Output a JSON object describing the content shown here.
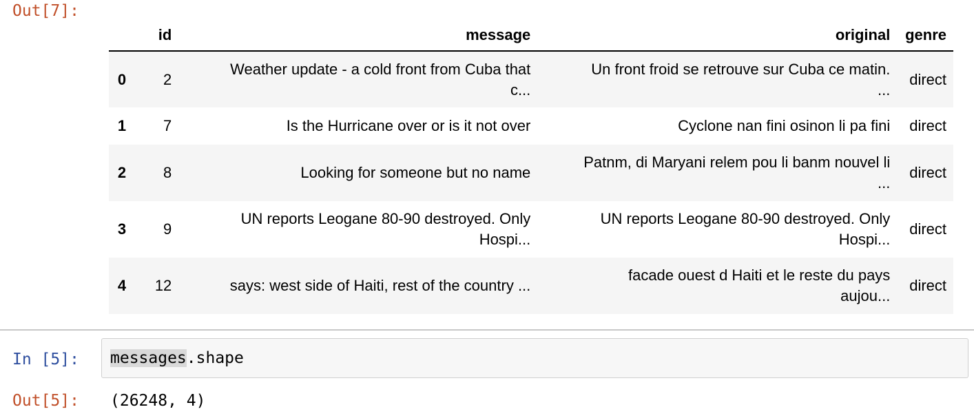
{
  "out_prompt_top": "Out[7]:",
  "in_prompt": "In [5]:",
  "out_prompt_bottom": "Out[5]:",
  "dataframe": {
    "columns": [
      "",
      "id",
      "message",
      "original",
      "genre"
    ],
    "rows": [
      {
        "index": "0",
        "id": "2",
        "message": [
          "Weather update - a cold front from Cuba that",
          "c..."
        ],
        "original": [
          "Un front froid se retrouve sur Cuba ce matin.",
          "..."
        ],
        "genre": "direct"
      },
      {
        "index": "1",
        "id": "7",
        "message": [
          "Is the Hurricane over or is it not over"
        ],
        "original": [
          "Cyclone nan fini osinon li pa fini"
        ],
        "genre": "direct"
      },
      {
        "index": "2",
        "id": "8",
        "message": [
          "Looking for someone but no name"
        ],
        "original": [
          "Patnm, di Maryani relem pou li banm nouvel li",
          "..."
        ],
        "genre": "direct"
      },
      {
        "index": "3",
        "id": "9",
        "message": [
          "UN reports Leogane 80-90 destroyed. Only",
          "Hospi..."
        ],
        "original": [
          "UN reports Leogane 80-90 destroyed. Only",
          "Hospi..."
        ],
        "genre": "direct"
      },
      {
        "index": "4",
        "id": "12",
        "message": [
          "says: west side of Haiti, rest of the country ..."
        ],
        "original": [
          "facade ouest d Haiti et le reste du pays",
          "aujou..."
        ],
        "genre": "direct"
      }
    ]
  },
  "code": {
    "highlighted": "messages",
    "rest": ".shape"
  },
  "output": "(26248, 4)"
}
